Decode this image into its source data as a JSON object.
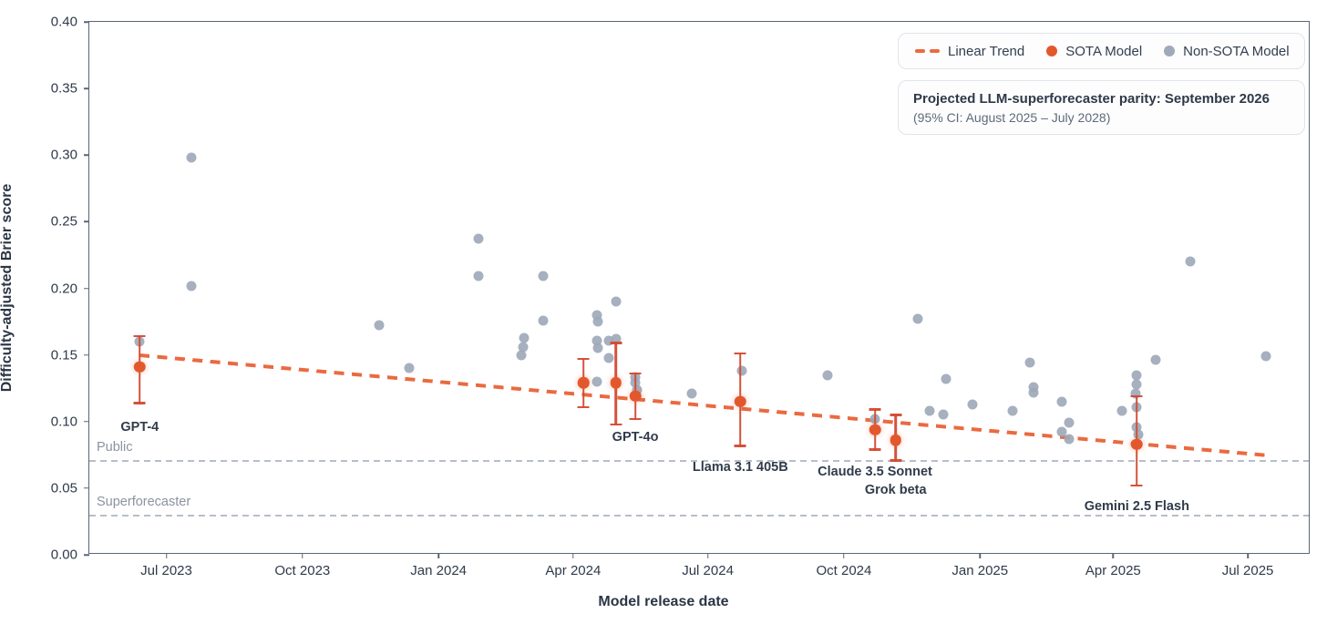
{
  "colors": {
    "sota": "#e2582d",
    "non_sota": "#9ea9b9",
    "trend": "#ea6a40",
    "error_bar": "#d34a31",
    "reference_line": "#b7bec8",
    "text_dark": "#2f3a4a"
  },
  "legend": {
    "items": [
      {
        "label": "Linear Trend",
        "swatch": "dash-icon"
      },
      {
        "label": "SOTA Model",
        "swatch": "orange-dot-icon"
      },
      {
        "label": "Non-SOTA Model",
        "swatch": "gray-dot-icon"
      }
    ]
  },
  "projection_box": {
    "line1": "Projected LLM-superforecaster parity: September 2026",
    "line2": "(95% CI: August 2025 – July 2028)"
  },
  "chart_data": {
    "type": "scatter",
    "title": "",
    "xlabel": "Model release date",
    "ylabel": "Difficulty-adjusted Brier score",
    "x_axis": {
      "label": "Model release date",
      "range": [
        "2023-05-10",
        "2025-08-13"
      ],
      "ticks": [
        {
          "label": "Jul 2023",
          "date": "2023-07-01"
        },
        {
          "label": "Oct 2023",
          "date": "2023-10-01"
        },
        {
          "label": "Jan 2024",
          "date": "2024-01-01"
        },
        {
          "label": "Apr 2024",
          "date": "2024-04-01"
        },
        {
          "label": "Jul 2024",
          "date": "2024-07-01"
        },
        {
          "label": "Oct 2024",
          "date": "2024-10-01"
        },
        {
          "label": "Jan 2025",
          "date": "2025-01-01"
        },
        {
          "label": "Apr 2025",
          "date": "2025-04-01"
        },
        {
          "label": "Jul 2025",
          "date": "2025-07-01"
        }
      ]
    },
    "y_axis": {
      "label": "Difficulty-adjusted Brier score",
      "range": [
        0.0,
        0.4
      ],
      "ticks": [
        0.0,
        0.05,
        0.1,
        0.15,
        0.2,
        0.25,
        0.3,
        0.35,
        0.4
      ],
      "grid": false
    },
    "reference_lines": [
      {
        "label": "Public",
        "value": 0.071
      },
      {
        "label": "Superforecaster",
        "value": 0.03
      }
    ],
    "trend": {
      "name": "Linear Trend",
      "start": {
        "date": "2023-06-13",
        "value": 0.15
      },
      "end": {
        "date": "2025-07-13",
        "value": 0.075
      }
    },
    "series": [
      {
        "name": "SOTA Model",
        "points": [
          {
            "date": "2023-06-13",
            "value": 0.141,
            "ci_low": 0.113,
            "ci_high": 0.165,
            "label": "GPT-4",
            "label_dy": 66
          },
          {
            "date": "2024-04-08",
            "value": 0.129,
            "ci_low": 0.11,
            "ci_high": 0.148
          },
          {
            "date": "2024-04-30",
            "value": 0.129,
            "ci_low": 0.097,
            "ci_high": 0.16
          },
          {
            "date": "2024-05-13",
            "value": 0.119,
            "ci_low": 0.101,
            "ci_high": 0.137,
            "label": "GPT-4o",
            "label_dy": 45
          },
          {
            "date": "2024-07-23",
            "value": 0.115,
            "ci_low": 0.081,
            "ci_high": 0.152,
            "label": "Llama 3.1 405B",
            "label_dy": 72
          },
          {
            "date": "2024-10-22",
            "value": 0.094,
            "ci_low": 0.078,
            "ci_high": 0.11,
            "label": "Claude 3.5 Sonnet",
            "label_dy": 46
          },
          {
            "date": "2024-11-05",
            "value": 0.086,
            "ci_low": 0.07,
            "ci_high": 0.106,
            "label": "Grok beta",
            "label_dy": 55
          },
          {
            "date": "2025-04-17",
            "value": 0.083,
            "ci_low": 0.051,
            "ci_high": 0.12,
            "label": "Gemini 2.5 Flash",
            "label_dy": 68
          }
        ]
      },
      {
        "name": "Non-SOTA Model",
        "points": [
          {
            "date": "2023-06-13",
            "value": 0.16
          },
          {
            "date": "2023-07-18",
            "value": 0.298
          },
          {
            "date": "2023-07-18",
            "value": 0.202
          },
          {
            "date": "2023-11-22",
            "value": 0.172
          },
          {
            "date": "2023-12-12",
            "value": 0.14
          },
          {
            "date": "2024-01-28",
            "value": 0.237
          },
          {
            "date": "2024-01-28",
            "value": 0.209
          },
          {
            "date": "2024-03-12",
            "value": 0.209
          },
          {
            "date": "2024-03-12",
            "value": 0.176
          },
          {
            "date": "2024-02-28",
            "value": 0.163
          },
          {
            "date": "2024-02-27",
            "value": 0.156
          },
          {
            "date": "2024-02-26",
            "value": 0.15
          },
          {
            "date": "2024-04-30",
            "value": 0.19
          },
          {
            "date": "2024-04-17",
            "value": 0.18
          },
          {
            "date": "2024-04-18",
            "value": 0.175
          },
          {
            "date": "2024-04-17",
            "value": 0.161
          },
          {
            "date": "2024-04-18",
            "value": 0.155
          },
          {
            "date": "2024-04-25",
            "value": 0.161
          },
          {
            "date": "2024-04-30",
            "value": 0.162
          },
          {
            "date": "2024-04-25",
            "value": 0.148
          },
          {
            "date": "2024-04-17",
            "value": 0.13
          },
          {
            "date": "2024-05-13",
            "value": 0.133
          },
          {
            "date": "2024-05-13",
            "value": 0.129
          },
          {
            "date": "2024-05-14",
            "value": 0.124
          },
          {
            "date": "2024-06-20",
            "value": 0.121
          },
          {
            "date": "2024-07-24",
            "value": 0.138
          },
          {
            "date": "2024-09-20",
            "value": 0.135
          },
          {
            "date": "2024-10-22",
            "value": 0.102
          },
          {
            "date": "2024-11-20",
            "value": 0.177
          },
          {
            "date": "2024-11-28",
            "value": 0.108
          },
          {
            "date": "2024-12-07",
            "value": 0.105
          },
          {
            "date": "2024-12-09",
            "value": 0.132
          },
          {
            "date": "2024-12-27",
            "value": 0.113
          },
          {
            "date": "2025-01-23",
            "value": 0.108
          },
          {
            "date": "2025-02-04",
            "value": 0.144
          },
          {
            "date": "2025-02-06",
            "value": 0.126
          },
          {
            "date": "2025-02-06",
            "value": 0.122
          },
          {
            "date": "2025-02-25",
            "value": 0.115
          },
          {
            "date": "2025-03-02",
            "value": 0.099
          },
          {
            "date": "2025-02-25",
            "value": 0.092
          },
          {
            "date": "2025-03-02",
            "value": 0.087
          },
          {
            "date": "2025-04-07",
            "value": 0.108
          },
          {
            "date": "2025-04-17",
            "value": 0.135
          },
          {
            "date": "2025-04-17",
            "value": 0.128
          },
          {
            "date": "2025-04-16",
            "value": 0.121
          },
          {
            "date": "2025-04-17",
            "value": 0.111
          },
          {
            "date": "2025-04-17",
            "value": 0.096
          },
          {
            "date": "2025-04-18",
            "value": 0.09
          },
          {
            "date": "2025-04-30",
            "value": 0.146
          },
          {
            "date": "2025-05-23",
            "value": 0.22
          },
          {
            "date": "2025-07-13",
            "value": 0.149
          }
        ]
      }
    ]
  }
}
